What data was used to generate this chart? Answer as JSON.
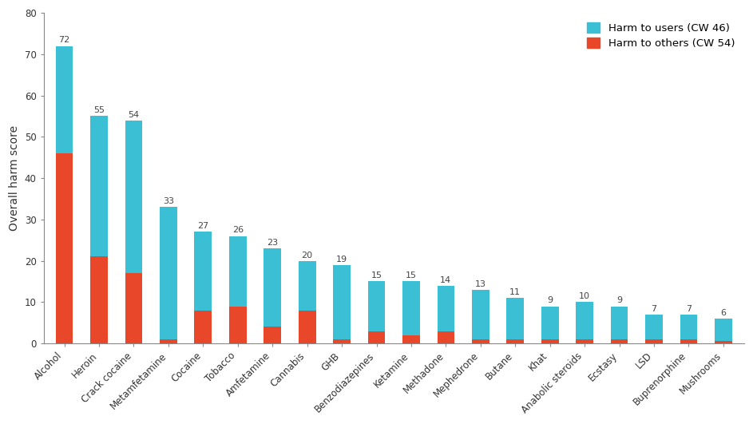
{
  "categories": [
    "Alcohol",
    "Heroin",
    "Crack cocaine",
    "Metamfetamine",
    "Cocaine",
    "Tobacco",
    "Amfetamine",
    "Cannabis",
    "GHB",
    "Benzodiazepines",
    "Ketamine",
    "Methadone",
    "Mephedrone",
    "Butane",
    "Khat",
    "Anabolic steroids",
    "Ecstasy",
    "LSD",
    "Buprenorphine",
    "Mushrooms"
  ],
  "totals": [
    72,
    55,
    54,
    33,
    27,
    26,
    23,
    20,
    19,
    15,
    15,
    14,
    13,
    11,
    9,
    10,
    9,
    7,
    7,
    6
  ],
  "harm_others": [
    46,
    21,
    17,
    1,
    8,
    9,
    4,
    8,
    1,
    3,
    2,
    3,
    1,
    1,
    1,
    1,
    1,
    1,
    1,
    0.5
  ],
  "color_users": "#3bbfd4",
  "color_others": "#e8472a",
  "ylabel": "Overall harm score",
  "ylim": [
    0,
    80
  ],
  "yticks": [
    0,
    10,
    20,
    30,
    40,
    50,
    60,
    70,
    80
  ],
  "legend_users": "Harm to users (CW 46)",
  "legend_others": "Harm to others (CW 54)",
  "background_color": "#ffffff",
  "annotation_fontsize": 8,
  "ylabel_fontsize": 10,
  "tick_fontsize": 8.5,
  "legend_fontsize": 9.5
}
